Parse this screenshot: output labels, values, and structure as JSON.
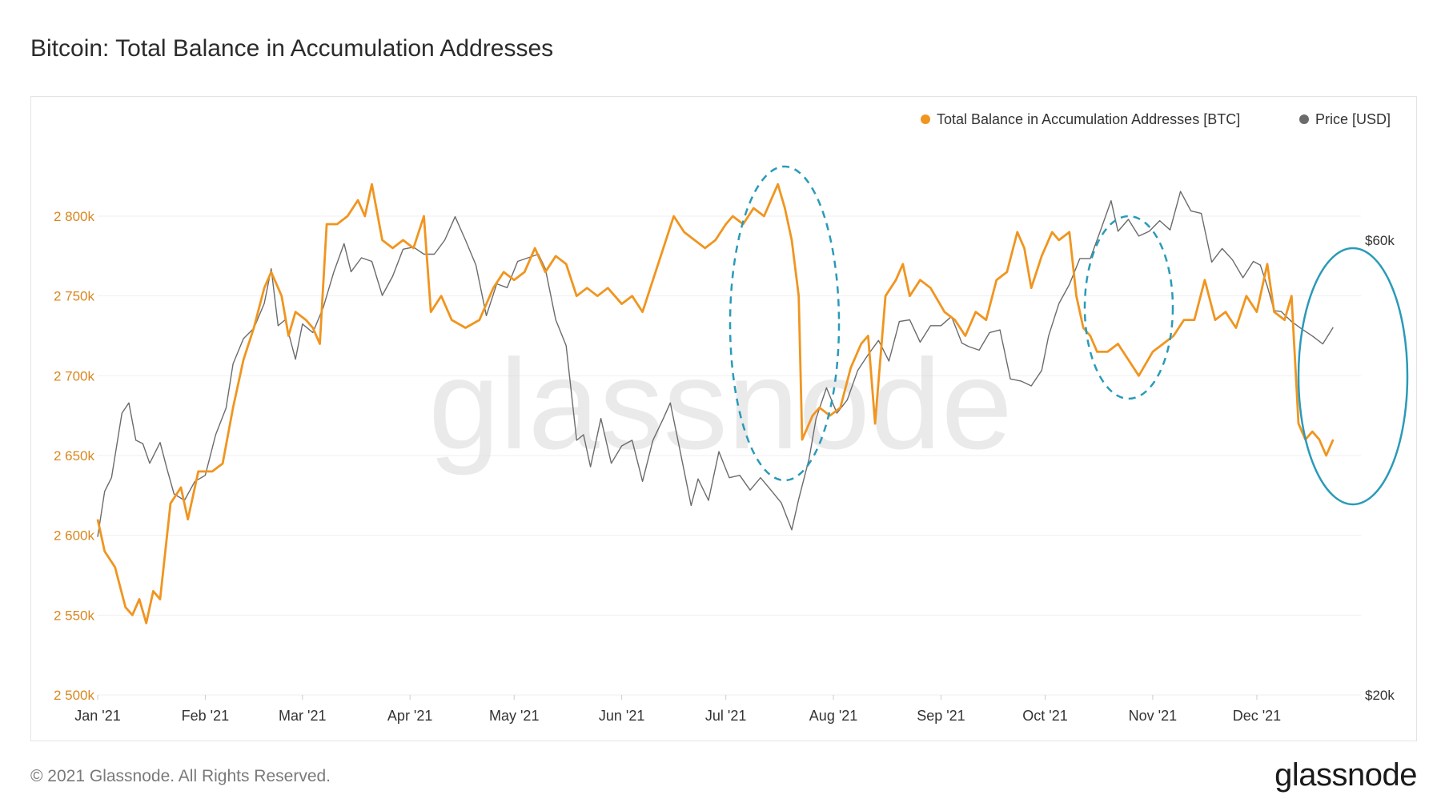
{
  "title": "Bitcoin: Total Balance in Accumulation Addresses",
  "footer": {
    "copyright": "© 2021 Glassnode. All Rights Reserved.",
    "logo": "glassnode"
  },
  "watermark": "glassnode",
  "colors": {
    "balance": "#f0951f",
    "price": "#6b6b6b",
    "highlight": "#2a9ab8",
    "left_axis": "#d9871f"
  },
  "chart_data": {
    "type": "line",
    "title": "Bitcoin: Total Balance in Accumulation Addresses",
    "x_tick_labels": [
      "Jan '21",
      "Feb '21",
      "Mar '21",
      "Apr '21",
      "May '21",
      "Jun '21",
      "Jul '21",
      "Aug '21",
      "Sep '21",
      "Oct '21",
      "Nov '21",
      "Dec '21"
    ],
    "y_left": {
      "ylim": [
        2500,
        2800
      ],
      "ticks": [
        2500,
        2550,
        2600,
        2650,
        2700,
        2750,
        2800
      ],
      "tick_labels": [
        "2 500k",
        "2 550k",
        "2 600k",
        "2 650k",
        "2 700k",
        "2 750k",
        "2 800k"
      ]
    },
    "y_right": {
      "scale": "log",
      "ticks": [
        20000,
        60000
      ],
      "tick_labels": [
        "$20k",
        "$60k"
      ]
    },
    "legend": {
      "placement": "top-right"
    },
    "grid": true,
    "series": [
      {
        "name": "Total Balance in Accumulation Addresses [BTC]",
        "axis": "left",
        "unit": "k BTC",
        "points": [
          [
            "2021-01-01",
            2610
          ],
          [
            "2021-01-03",
            2590
          ],
          [
            "2021-01-06",
            2580
          ],
          [
            "2021-01-09",
            2555
          ],
          [
            "2021-01-11",
            2550
          ],
          [
            "2021-01-13",
            2560
          ],
          [
            "2021-01-15",
            2545
          ],
          [
            "2021-01-17",
            2565
          ],
          [
            "2021-01-19",
            2560
          ],
          [
            "2021-01-22",
            2620
          ],
          [
            "2021-01-25",
            2630
          ],
          [
            "2021-01-27",
            2610
          ],
          [
            "2021-01-30",
            2640
          ],
          [
            "2021-02-03",
            2640
          ],
          [
            "2021-02-06",
            2645
          ],
          [
            "2021-02-09",
            2680
          ],
          [
            "2021-02-12",
            2710
          ],
          [
            "2021-02-15",
            2730
          ],
          [
            "2021-02-18",
            2755
          ],
          [
            "2021-02-20",
            2765
          ],
          [
            "2021-02-23",
            2750
          ],
          [
            "2021-02-25",
            2725
          ],
          [
            "2021-02-27",
            2740
          ],
          [
            "2021-03-02",
            2735
          ],
          [
            "2021-03-04",
            2730
          ],
          [
            "2021-03-06",
            2720
          ],
          [
            "2021-03-08",
            2795
          ],
          [
            "2021-03-11",
            2795
          ],
          [
            "2021-03-14",
            2800
          ],
          [
            "2021-03-17",
            2810
          ],
          [
            "2021-03-19",
            2800
          ],
          [
            "2021-03-21",
            2820
          ],
          [
            "2021-03-24",
            2785
          ],
          [
            "2021-03-27",
            2780
          ],
          [
            "2021-03-30",
            2785
          ],
          [
            "2021-04-02",
            2780
          ],
          [
            "2021-04-05",
            2800
          ],
          [
            "2021-04-07",
            2740
          ],
          [
            "2021-04-10",
            2750
          ],
          [
            "2021-04-13",
            2735
          ],
          [
            "2021-04-17",
            2730
          ],
          [
            "2021-04-21",
            2735
          ],
          [
            "2021-04-25",
            2755
          ],
          [
            "2021-04-28",
            2765
          ],
          [
            "2021-05-01",
            2760
          ],
          [
            "2021-05-04",
            2765
          ],
          [
            "2021-05-07",
            2780
          ],
          [
            "2021-05-10",
            2765
          ],
          [
            "2021-05-13",
            2775
          ],
          [
            "2021-05-16",
            2770
          ],
          [
            "2021-05-19",
            2750
          ],
          [
            "2021-05-22",
            2755
          ],
          [
            "2021-05-25",
            2750
          ],
          [
            "2021-05-28",
            2755
          ],
          [
            "2021-06-01",
            2745
          ],
          [
            "2021-06-04",
            2750
          ],
          [
            "2021-06-07",
            2740
          ],
          [
            "2021-06-10",
            2760
          ],
          [
            "2021-06-13",
            2780
          ],
          [
            "2021-06-16",
            2800
          ],
          [
            "2021-06-19",
            2790
          ],
          [
            "2021-06-22",
            2785
          ],
          [
            "2021-06-25",
            2780
          ],
          [
            "2021-06-28",
            2785
          ],
          [
            "2021-07-01",
            2795
          ],
          [
            "2021-07-03",
            2800
          ],
          [
            "2021-07-06",
            2795
          ],
          [
            "2021-07-09",
            2805
          ],
          [
            "2021-07-12",
            2800
          ],
          [
            "2021-07-14",
            2810
          ],
          [
            "2021-07-16",
            2820
          ],
          [
            "2021-07-18",
            2805
          ],
          [
            "2021-07-20",
            2785
          ],
          [
            "2021-07-22",
            2750
          ],
          [
            "2021-07-23",
            2660
          ],
          [
            "2021-07-26",
            2675
          ],
          [
            "2021-07-28",
            2680
          ],
          [
            "2021-07-31",
            2675
          ],
          [
            "2021-08-03",
            2680
          ],
          [
            "2021-08-06",
            2705
          ],
          [
            "2021-08-09",
            2720
          ],
          [
            "2021-08-11",
            2725
          ],
          [
            "2021-08-13",
            2670
          ],
          [
            "2021-08-16",
            2750
          ],
          [
            "2021-08-19",
            2760
          ],
          [
            "2021-08-21",
            2770
          ],
          [
            "2021-08-23",
            2750
          ],
          [
            "2021-08-26",
            2760
          ],
          [
            "2021-08-29",
            2755
          ],
          [
            "2021-09-02",
            2740
          ],
          [
            "2021-09-05",
            2735
          ],
          [
            "2021-09-08",
            2725
          ],
          [
            "2021-09-11",
            2740
          ],
          [
            "2021-09-14",
            2735
          ],
          [
            "2021-09-17",
            2760
          ],
          [
            "2021-09-20",
            2765
          ],
          [
            "2021-09-23",
            2790
          ],
          [
            "2021-09-25",
            2780
          ],
          [
            "2021-09-27",
            2755
          ],
          [
            "2021-09-30",
            2775
          ],
          [
            "2021-10-03",
            2790
          ],
          [
            "2021-10-05",
            2785
          ],
          [
            "2021-10-08",
            2790
          ],
          [
            "2021-10-10",
            2750
          ],
          [
            "2021-10-12",
            2730
          ],
          [
            "2021-10-14",
            2725
          ],
          [
            "2021-10-16",
            2715
          ],
          [
            "2021-10-19",
            2715
          ],
          [
            "2021-10-22",
            2720
          ],
          [
            "2021-10-25",
            2710
          ],
          [
            "2021-10-28",
            2700
          ],
          [
            "2021-11-01",
            2715
          ],
          [
            "2021-11-04",
            2720
          ],
          [
            "2021-11-07",
            2725
          ],
          [
            "2021-11-10",
            2735
          ],
          [
            "2021-11-13",
            2735
          ],
          [
            "2021-11-16",
            2760
          ],
          [
            "2021-11-19",
            2735
          ],
          [
            "2021-11-22",
            2740
          ],
          [
            "2021-11-25",
            2730
          ],
          [
            "2021-11-28",
            2750
          ],
          [
            "2021-12-01",
            2740
          ],
          [
            "2021-12-04",
            2770
          ],
          [
            "2021-12-06",
            2740
          ],
          [
            "2021-12-09",
            2735
          ],
          [
            "2021-12-11",
            2750
          ],
          [
            "2021-12-13",
            2670
          ],
          [
            "2021-12-15",
            2660
          ],
          [
            "2021-12-17",
            2665
          ],
          [
            "2021-12-19",
            2660
          ],
          [
            "2021-12-21",
            2650
          ],
          [
            "2021-12-23",
            2660
          ]
        ]
      },
      {
        "name": "Price [USD]",
        "axis": "right",
        "unit": "USD",
        "points": [
          [
            "2021-01-01",
            29300
          ],
          [
            "2021-01-03",
            32700
          ],
          [
            "2021-01-05",
            33800
          ],
          [
            "2021-01-08",
            39500
          ],
          [
            "2021-01-10",
            40500
          ],
          [
            "2021-01-12",
            37000
          ],
          [
            "2021-01-14",
            36700
          ],
          [
            "2021-01-16",
            35000
          ],
          [
            "2021-01-19",
            36800
          ],
          [
            "2021-01-21",
            34500
          ],
          [
            "2021-01-23",
            32500
          ],
          [
            "2021-01-26",
            32000
          ],
          [
            "2021-01-29",
            33500
          ],
          [
            "2021-02-01",
            34000
          ],
          [
            "2021-02-04",
            37500
          ],
          [
            "2021-02-07",
            40000
          ],
          [
            "2021-02-09",
            44500
          ],
          [
            "2021-02-12",
            47300
          ],
          [
            "2021-02-15",
            48500
          ],
          [
            "2021-02-18",
            51500
          ],
          [
            "2021-02-20",
            56000
          ],
          [
            "2021-02-22",
            48800
          ],
          [
            "2021-02-24",
            49500
          ],
          [
            "2021-02-27",
            45000
          ],
          [
            "2021-03-01",
            49000
          ],
          [
            "2021-03-04",
            48000
          ],
          [
            "2021-03-07",
            51000
          ],
          [
            "2021-03-10",
            55500
          ],
          [
            "2021-03-13",
            59500
          ],
          [
            "2021-03-15",
            55600
          ],
          [
            "2021-03-18",
            57500
          ],
          [
            "2021-03-21",
            57000
          ],
          [
            "2021-03-24",
            52500
          ],
          [
            "2021-03-27",
            55000
          ],
          [
            "2021-03-30",
            58700
          ],
          [
            "2021-04-02",
            59000
          ],
          [
            "2021-04-05",
            58000
          ],
          [
            "2021-04-08",
            58000
          ],
          [
            "2021-04-11",
            60000
          ],
          [
            "2021-04-14",
            63500
          ],
          [
            "2021-04-17",
            60000
          ],
          [
            "2021-04-20",
            56500
          ],
          [
            "2021-04-23",
            50000
          ],
          [
            "2021-04-26",
            54000
          ],
          [
            "2021-04-29",
            53500
          ],
          [
            "2021-05-02",
            57000
          ],
          [
            "2021-05-05",
            57500
          ],
          [
            "2021-05-08",
            58000
          ],
          [
            "2021-05-10",
            56000
          ],
          [
            "2021-05-13",
            49500
          ],
          [
            "2021-05-16",
            46500
          ],
          [
            "2021-05-19",
            37000
          ],
          [
            "2021-05-21",
            37500
          ],
          [
            "2021-05-23",
            34700
          ],
          [
            "2021-05-26",
            39000
          ],
          [
            "2021-05-29",
            35000
          ],
          [
            "2021-06-01",
            36500
          ],
          [
            "2021-06-04",
            37000
          ],
          [
            "2021-06-07",
            33500
          ],
          [
            "2021-06-10",
            37000
          ],
          [
            "2021-06-13",
            39000
          ],
          [
            "2021-06-15",
            40500
          ],
          [
            "2021-06-18",
            35800
          ],
          [
            "2021-06-21",
            31600
          ],
          [
            "2021-06-23",
            33700
          ],
          [
            "2021-06-26",
            32000
          ],
          [
            "2021-06-29",
            36000
          ],
          [
            "2021-07-02",
            33800
          ],
          [
            "2021-07-05",
            34000
          ],
          [
            "2021-07-08",
            32800
          ],
          [
            "2021-07-11",
            33800
          ],
          [
            "2021-07-14",
            32800
          ],
          [
            "2021-07-17",
            31800
          ],
          [
            "2021-07-20",
            29800
          ],
          [
            "2021-07-22",
            32100
          ],
          [
            "2021-07-25",
            35400
          ],
          [
            "2021-07-27",
            39000
          ],
          [
            "2021-07-30",
            42000
          ],
          [
            "2021-08-02",
            39500
          ],
          [
            "2021-08-05",
            40800
          ],
          [
            "2021-08-08",
            43800
          ],
          [
            "2021-08-11",
            45500
          ],
          [
            "2021-08-14",
            47100
          ],
          [
            "2021-08-17",
            44800
          ],
          [
            "2021-08-20",
            49300
          ],
          [
            "2021-08-23",
            49500
          ],
          [
            "2021-08-26",
            46900
          ],
          [
            "2021-08-29",
            48800
          ],
          [
            "2021-09-01",
            48800
          ],
          [
            "2021-09-04",
            49900
          ],
          [
            "2021-09-07",
            46800
          ],
          [
            "2021-09-09",
            46400
          ],
          [
            "2021-09-12",
            46000
          ],
          [
            "2021-09-15",
            48000
          ],
          [
            "2021-09-18",
            48300
          ],
          [
            "2021-09-21",
            42900
          ],
          [
            "2021-09-24",
            42700
          ],
          [
            "2021-09-27",
            42200
          ],
          [
            "2021-09-30",
            43800
          ],
          [
            "2021-10-02",
            47600
          ],
          [
            "2021-10-05",
            51500
          ],
          [
            "2021-10-08",
            53900
          ],
          [
            "2021-10-11",
            57400
          ],
          [
            "2021-10-14",
            57400
          ],
          [
            "2021-10-17",
            61500
          ],
          [
            "2021-10-20",
            66000
          ],
          [
            "2021-10-22",
            61300
          ],
          [
            "2021-10-25",
            63100
          ],
          [
            "2021-10-28",
            60600
          ],
          [
            "2021-10-31",
            61300
          ],
          [
            "2021-11-03",
            62900
          ],
          [
            "2021-11-06",
            61500
          ],
          [
            "2021-11-09",
            67500
          ],
          [
            "2021-11-12",
            64400
          ],
          [
            "2021-11-15",
            64000
          ],
          [
            "2021-11-18",
            56900
          ],
          [
            "2021-11-21",
            58800
          ],
          [
            "2021-11-24",
            57200
          ],
          [
            "2021-11-27",
            54800
          ],
          [
            "2021-11-30",
            57000
          ],
          [
            "2021-12-02",
            56500
          ],
          [
            "2021-12-04",
            53700
          ],
          [
            "2021-12-06",
            50600
          ],
          [
            "2021-12-08",
            50500
          ],
          [
            "2021-12-11",
            49300
          ],
          [
            "2021-12-14",
            48400
          ],
          [
            "2021-12-17",
            47600
          ],
          [
            "2021-12-20",
            46700
          ],
          [
            "2021-12-23",
            48600
          ]
        ]
      }
    ]
  }
}
